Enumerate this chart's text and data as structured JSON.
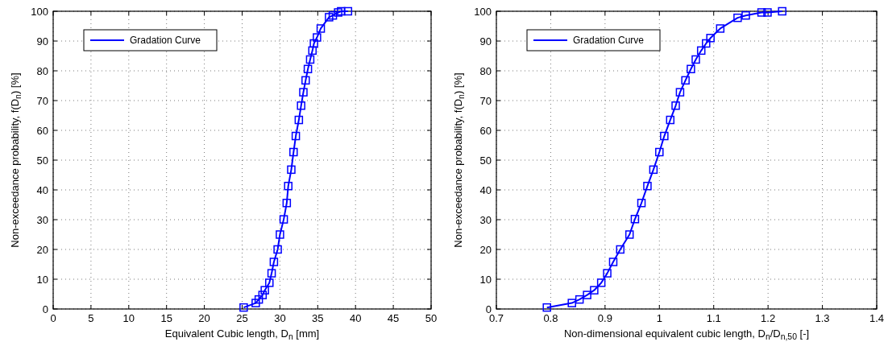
{
  "chart_data": [
    {
      "type": "line",
      "xlabel": "Equivalent Cubic length, D$_{n}$ [mm]",
      "ylabel": "Non-exceedance probability, f(D$_{n}$) [%]",
      "xlim": [
        0,
        50
      ],
      "xticks": [
        0,
        5,
        10,
        15,
        20,
        25,
        30,
        35,
        40,
        45,
        50
      ],
      "ylim": [
        0,
        100
      ],
      "yticks": [
        0,
        10,
        20,
        30,
        40,
        50,
        60,
        70,
        80,
        90,
        100
      ],
      "grid": true,
      "legend": "top left",
      "marker": "square",
      "line_style": "solid",
      "series": [
        {
          "name": "Gradation Curve",
          "color": "#0000ff",
          "x": [
            25.2,
            26.8,
            27.2,
            27.7,
            28.0,
            28.6,
            28.9,
            29.2,
            29.7,
            30.0,
            30.5,
            30.9,
            31.1,
            31.5,
            31.8,
            32.1,
            32.5,
            32.8,
            33.1,
            33.4,
            33.7,
            34.0,
            34.3,
            34.5,
            34.9,
            35.4,
            36.5,
            37.0,
            37.7,
            38.1,
            39.0
          ],
          "values": [
            0.5,
            2.0,
            3.2,
            4.7,
            6.3,
            8.8,
            12.0,
            15.8,
            20.0,
            25.0,
            30.1,
            35.6,
            41.3,
            46.8,
            52.7,
            58.1,
            63.5,
            68.3,
            72.8,
            76.8,
            80.6,
            83.8,
            86.8,
            89.2,
            91.2,
            94.2,
            98.0,
            98.6,
            99.6,
            100,
            100
          ]
        }
      ]
    },
    {
      "type": "line",
      "xlabel": "Non-dimensional equivalent cubic length, D$_{n}$/D$_{n,50}$ [-]",
      "ylabel": "Non-exceedance probability, f(D$_{n}$) [%]",
      "xlim": [
        0.7,
        1.4
      ],
      "xticks": [
        0.7,
        0.8,
        0.9,
        1,
        1.1,
        1.2,
        1.3,
        1.4
      ],
      "ylim": [
        0,
        100
      ],
      "yticks": [
        0,
        10,
        20,
        30,
        40,
        50,
        60,
        70,
        80,
        90,
        100
      ],
      "grid": true,
      "legend": "top left",
      "marker": "square",
      "line_style": "solid",
      "series": [
        {
          "name": "Gradation Curve",
          "color": "#0000ff",
          "x": [
            0.793,
            0.839,
            0.853,
            0.867,
            0.88,
            0.893,
            0.904,
            0.915,
            0.928,
            0.945,
            0.955,
            0.967,
            0.978,
            0.989,
            1.0,
            1.009,
            1.02,
            1.03,
            1.038,
            1.048,
            1.058,
            1.067,
            1.077,
            1.086,
            1.094,
            1.112,
            1.144,
            1.159,
            1.188,
            1.199,
            1.226
          ],
          "values": [
            0.5,
            2.0,
            3.2,
            4.7,
            6.3,
            8.8,
            12.0,
            15.8,
            20.0,
            25.0,
            30.2,
            35.6,
            41.3,
            46.8,
            52.7,
            58.1,
            63.5,
            68.3,
            72.8,
            76.8,
            80.6,
            83.8,
            86.8,
            89.2,
            91.0,
            94.2,
            97.8,
            98.6,
            99.6,
            99.6,
            100
          ]
        }
      ]
    }
  ]
}
